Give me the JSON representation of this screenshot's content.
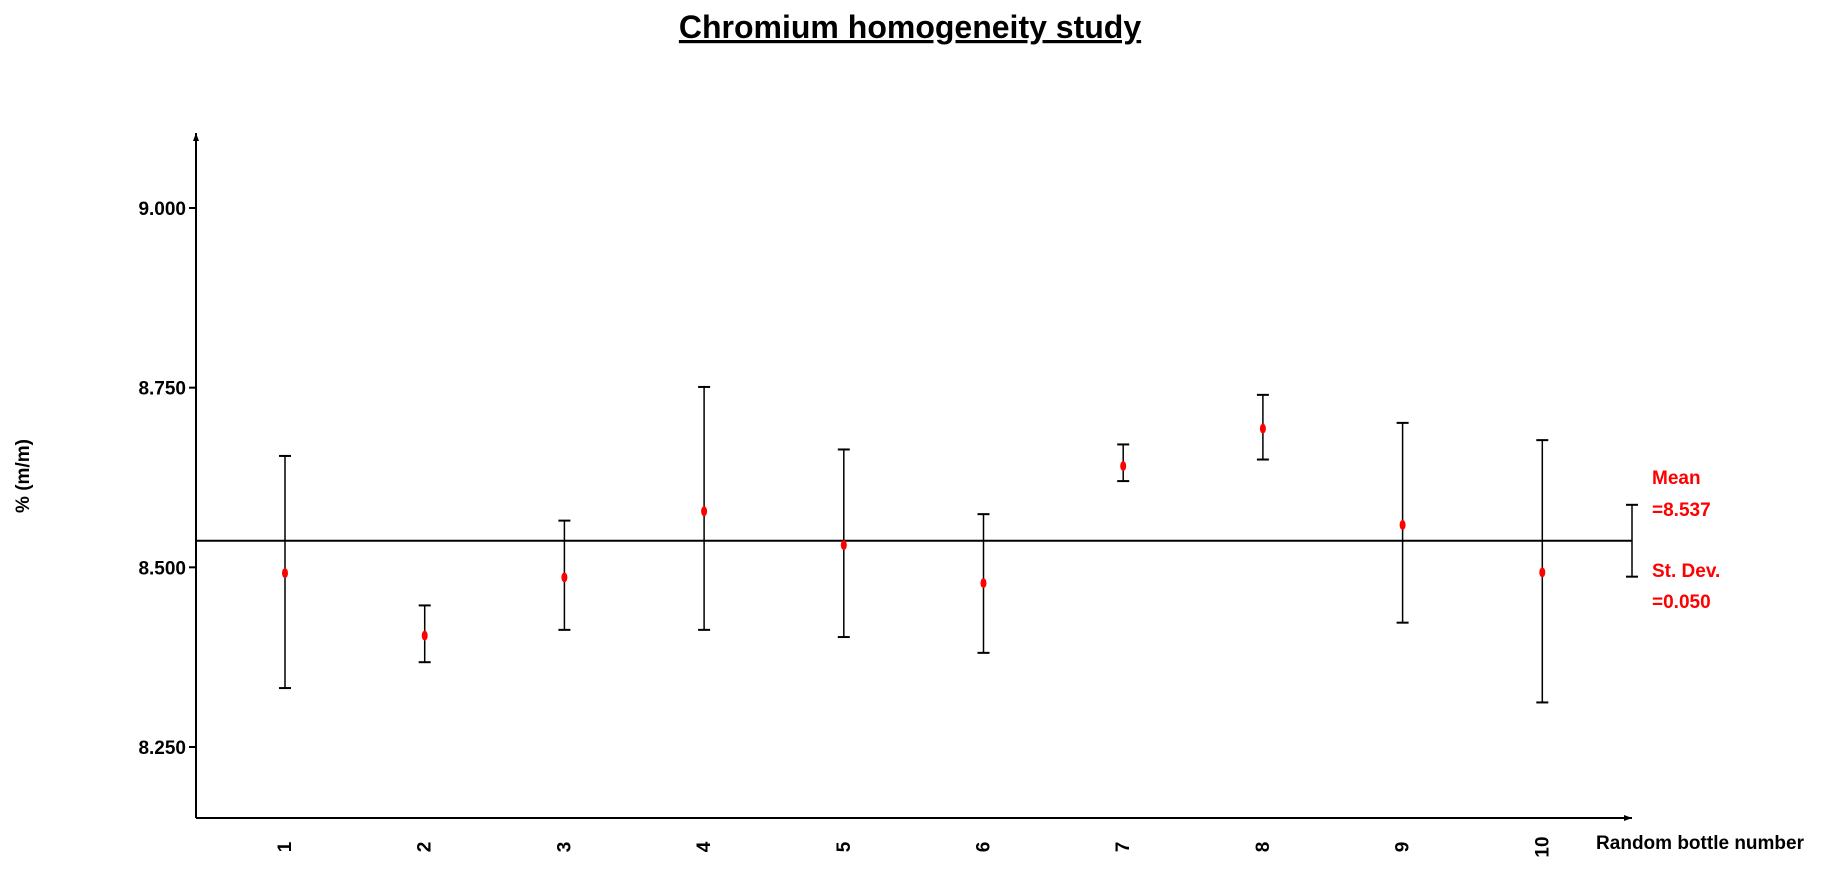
{
  "chart_data": {
    "type": "scatter",
    "title": "Chromium homogeneity study",
    "xlabel": "Random bottle number",
    "ylabel": "% (m/m)",
    "ylim": [
      8.15,
      9.1
    ],
    "yticks": [
      "9.000",
      "8.750",
      "8.500",
      "8.250"
    ],
    "ytick_values": [
      9.0,
      8.75,
      8.5,
      8.25
    ],
    "categories": [
      "1",
      "2",
      "3",
      "4",
      "5",
      "6",
      "7",
      "8",
      "9",
      "10"
    ],
    "series": [
      {
        "values": [
          8.492,
          8.405,
          8.486,
          8.578,
          8.531,
          8.478,
          8.641,
          8.693,
          8.559,
          8.493
        ],
        "lower": [
          8.332,
          8.368,
          8.413,
          8.413,
          8.403,
          8.381,
          8.62,
          8.65,
          8.423,
          8.312
        ],
        "upper": [
          8.655,
          8.447,
          8.565,
          8.751,
          8.664,
          8.574,
          8.671,
          8.74,
          8.701,
          8.677
        ]
      }
    ],
    "reference_line": {
      "value": 8.537
    },
    "summary_bar": {
      "lower": 8.487,
      "upper": 8.587
    },
    "annotations": {
      "mean_label": "Mean",
      "mean_value": "=8.537",
      "sd_label": "St. Dev.",
      "sd_value": "=0.050"
    },
    "colors": {
      "points": "#ff0000",
      "annotation": "#ff0000",
      "axes": "#000000"
    },
    "grid": false,
    "legend": "none"
  }
}
